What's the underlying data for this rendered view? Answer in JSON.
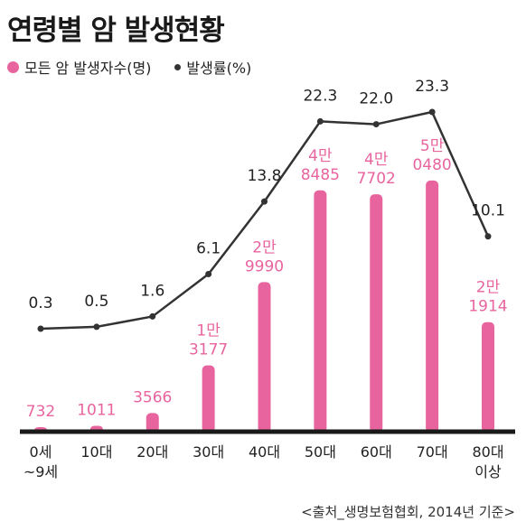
{
  "title": "연령별 암 발생현황",
  "legend": {
    "bar_label": "모든 암 발생자수(명)",
    "line_label": "발생률(%)"
  },
  "source": "<출처_생명보험협회, 2014년 기준>",
  "colors": {
    "bar": "#e8649f",
    "line": "#333333",
    "text": "#222222",
    "bar_label_text": "#e8649f",
    "axis": "#1a1a1a"
  },
  "chart_data": {
    "type": "bar+line",
    "categories": [
      "0세\n~9세",
      "10대",
      "20대",
      "30대",
      "40대",
      "50대",
      "60대",
      "70대",
      "80대\n이상"
    ],
    "series": [
      {
        "name": "모든 암 발생자수(명)",
        "type": "bar",
        "values": [
          732,
          1011,
          3566,
          13177,
          29990,
          48485,
          47702,
          50480,
          21914
        ],
        "labels": [
          "732",
          "1011",
          "3566",
          "1만\n3177",
          "2만\n9990",
          "4만\n8485",
          "4만\n7702",
          "5만\n0480",
          "2만\n1914"
        ]
      },
      {
        "name": "발생률(%)",
        "type": "line",
        "values": [
          0.3,
          0.5,
          1.6,
          6.1,
          13.8,
          22.3,
          22.0,
          23.3,
          10.1
        ],
        "labels": [
          "0.3",
          "0.5",
          "1.6",
          "6.1",
          "13.8",
          "22.3",
          "22.0",
          "23.3",
          "10.1"
        ]
      }
    ],
    "xlabel": "",
    "ylabel": "",
    "grid": false,
    "legend_position": "top-left"
  }
}
